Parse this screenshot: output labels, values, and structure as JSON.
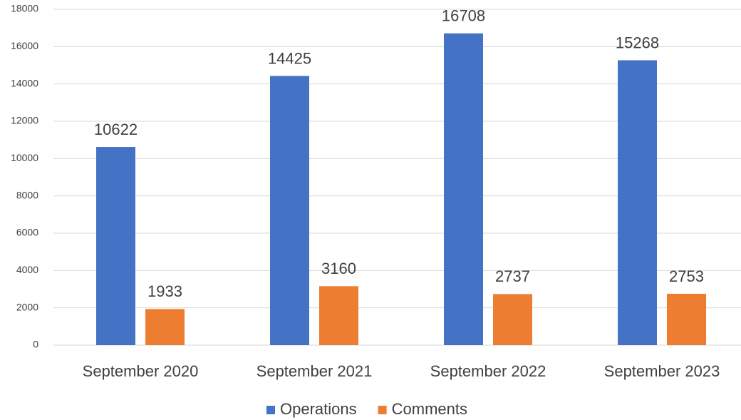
{
  "chart_data": {
    "type": "bar",
    "categories": [
      "September 2020",
      "September 2021",
      "September 2022",
      "September 2023"
    ],
    "series": [
      {
        "name": "Operations",
        "color": "#4472c4",
        "values": [
          10622,
          14425,
          16708,
          15268
        ]
      },
      {
        "name": "Comments",
        "color": "#ed7d31",
        "values": [
          1933,
          3160,
          2737,
          2753
        ]
      }
    ],
    "ylim": [
      0,
      18000
    ],
    "yticks": [
      0,
      2000,
      4000,
      6000,
      8000,
      10000,
      12000,
      14000,
      16000,
      18000
    ],
    "grid": true,
    "legend": "bottom"
  }
}
